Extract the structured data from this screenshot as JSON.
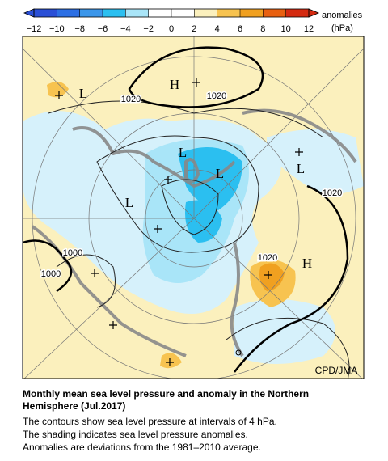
{
  "colorbar": {
    "ticks": [
      {
        "value": -12,
        "label": "−12"
      },
      {
        "value": -10,
        "label": "−10"
      },
      {
        "value": -8,
        "label": "−8"
      },
      {
        "value": -6,
        "label": "−6"
      },
      {
        "value": -4,
        "label": "−4"
      },
      {
        "value": -2,
        "label": "−2"
      },
      0,
      2,
      4,
      6,
      8,
      10,
      12
    ],
    "colors": [
      "#2a4fd6",
      "#2c6fe4",
      "#3b96ea",
      "#2bbff0",
      "#a9e5f8",
      "#ffffff",
      "#ffffff",
      "#fbf0bd",
      "#f7c350",
      "#f0a020",
      "#e86010",
      "#d42a10"
    ],
    "title": "anomalies",
    "unit": "(hPa)"
  },
  "map": {
    "labels": [
      {
        "text": "H"
      },
      {
        "text": "L"
      },
      {
        "text": "1020"
      },
      {
        "text": "1020"
      },
      {
        "text": "L"
      },
      {
        "text": "L"
      },
      {
        "text": "L"
      },
      {
        "text": "L"
      },
      {
        "text": "1020"
      },
      {
        "text": "1020"
      },
      {
        "text": "H"
      },
      {
        "text": "1000"
      },
      {
        "text": "1000"
      }
    ],
    "credit": "CPD/JMA"
  },
  "caption": {
    "title": "Monthly mean sea level pressure and anomaly in the Northern Hemisphere (Jul.2017)",
    "lines": [
      "The contours show sea level pressure at intervals of 4 hPa.",
      "The shading indicates sea level pressure anomalies.",
      "Anomalies are deviations from the 1981–2010 average."
    ]
  }
}
